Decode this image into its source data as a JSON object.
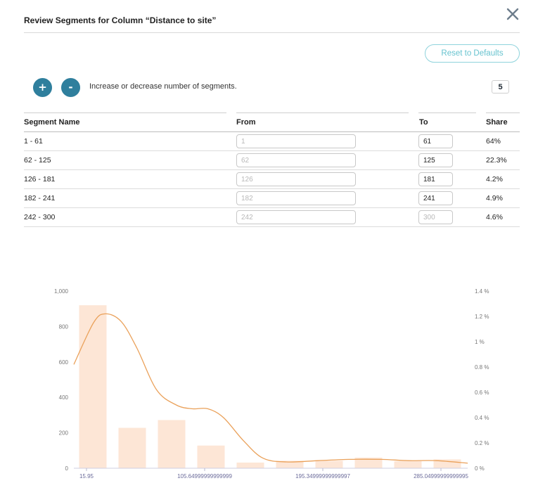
{
  "dialog": {
    "title": "Review Segments for Column “Distance to site”",
    "close_icon": "close-icon",
    "reset_label": "Reset to Defaults"
  },
  "segments": {
    "plus_label": "+",
    "minus_label": "-",
    "help_text": "Increase or decrease number of segments.",
    "count": "5"
  },
  "table": {
    "headers": {
      "name": "Segment Name",
      "from": "From",
      "to": "To",
      "share": "Share"
    },
    "rows": [
      {
        "name": "1 - 61",
        "from": "1",
        "to": "61",
        "share": "64%"
      },
      {
        "name": "62 - 125",
        "from": "62",
        "to": "125",
        "share": "22.3%"
      },
      {
        "name": "126 - 181",
        "from": "126",
        "to": "181",
        "share": "4.2%"
      },
      {
        "name": "182 - 241",
        "from": "182",
        "to": "241",
        "share": "4.9%"
      },
      {
        "name": "242 - 300",
        "from": "242",
        "to": "",
        "to_placeholder": "300",
        "share": "4.6%"
      }
    ]
  },
  "chart_data": {
    "type": "bar",
    "title": "",
    "bar_color": "#fde6d6",
    "line_color": "#eaa15a",
    "categories_count": 10,
    "values": [
      920,
      228,
      272,
      128,
      32,
      42,
      42,
      60,
      40,
      50
    ],
    "ylim": [
      0,
      1000
    ],
    "y_ticks": [
      "0",
      "200",
      "400",
      "600",
      "800",
      "1,000"
    ],
    "y2_ticks": [
      "0 %",
      "0.2 %",
      "0.4 %",
      "0.6 %",
      "0.8 %",
      "1 %",
      "1.2 %",
      "1.4 %"
    ],
    "y2lim": [
      0,
      1.4
    ],
    "x_tick_labels": [
      "15.95",
      "105.64999999999999",
      "195.34999999999997",
      "285.04999999999995"
    ],
    "x_tick_bins": [
      0,
      3,
      6,
      9
    ],
    "density_line": [
      [
        0,
        0.82
      ],
      [
        0.5,
        1.15
      ],
      [
        0.8,
        1.22
      ],
      [
        1.2,
        1.16
      ],
      [
        1.6,
        0.95
      ],
      [
        2.1,
        0.62
      ],
      [
        2.6,
        0.5
      ],
      [
        3.0,
        0.47
      ],
      [
        3.4,
        0.47
      ],
      [
        3.8,
        0.4
      ],
      [
        4.3,
        0.22
      ],
      [
        4.8,
        0.08
      ],
      [
        5.4,
        0.05
      ],
      [
        6.2,
        0.06
      ],
      [
        7.0,
        0.07
      ],
      [
        7.8,
        0.07
      ],
      [
        8.5,
        0.06
      ],
      [
        9.2,
        0.06
      ],
      [
        10,
        0.04
      ]
    ]
  }
}
